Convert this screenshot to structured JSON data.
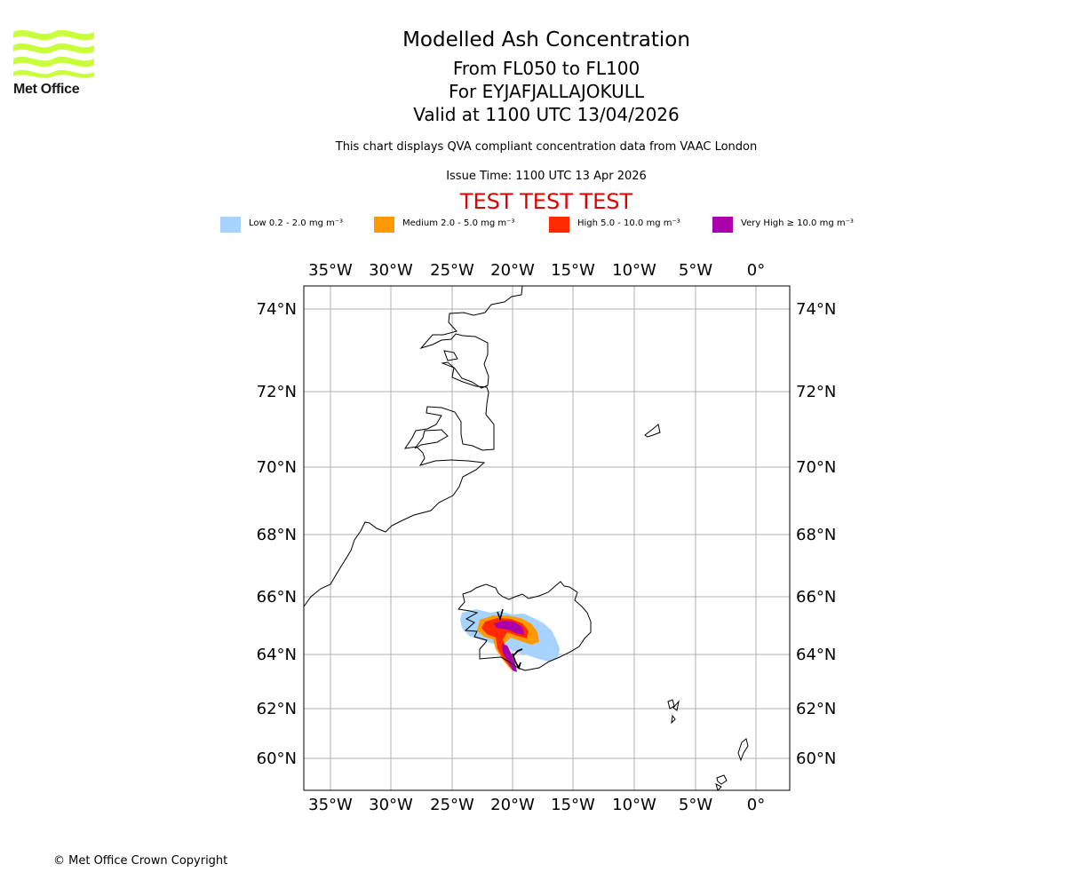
{
  "header": {
    "logo_text": "Met Office",
    "title": "Modelled Ash Concentration",
    "level_range": "From FL050 to FL100",
    "volcano": "For EYJAFJALLAJOKULL",
    "valid_time": "Valid at 1100 UTC 13/04/2026",
    "description": "This chart displays QVA compliant concentration data from VAAC London",
    "issue_time": "Issue Time: 1100 UTC 13 Apr 2026",
    "test_banner": "TEST TEST TEST"
  },
  "legend": [
    {
      "label": "Low 0.2 - 2.0 mg m⁻³",
      "color": "#a6d3ff"
    },
    {
      "label": "Medium 2.0 - 5.0 mg m⁻³",
      "color": "#ff9900"
    },
    {
      "label": "High 5.0 - 10.0 mg m⁻³",
      "color": "#ff2a00"
    },
    {
      "label": "Very High ≥ 10.0 mg m⁻³",
      "color": "#aa00aa"
    }
  ],
  "map": {
    "lon_ticks": [
      "35°W",
      "30°W",
      "25°W",
      "20°W",
      "15°W",
      "10°W",
      "5°W",
      "0°"
    ],
    "lat_ticks": [
      "74°N",
      "72°N",
      "70°N",
      "68°N",
      "66°N",
      "64°N",
      "62°N",
      "60°N"
    ],
    "lon_range": [
      -37.2,
      2.8
    ],
    "lat_range": [
      59,
      74.8
    ],
    "grid": true,
    "projection": "stereographic"
  },
  "footer": {
    "copyright": "© Met Office Crown Copyright"
  }
}
